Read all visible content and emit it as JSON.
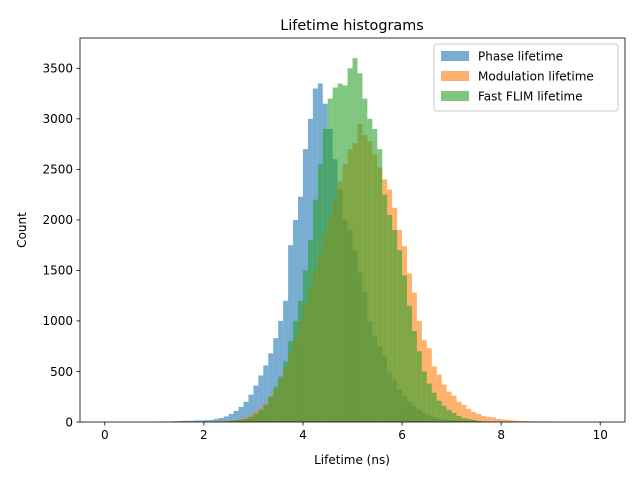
{
  "chart_data": {
    "type": "bar",
    "title": "Lifetime histograms",
    "xlabel": "Lifetime (ns)",
    "ylabel": "Count",
    "xlim": [
      -0.5,
      10.5
    ],
    "ylim": [
      0,
      3800
    ],
    "xticks": [
      0,
      2,
      4,
      6,
      8,
      10
    ],
    "yticks": [
      0,
      500,
      1000,
      1500,
      2000,
      2500,
      3000,
      3500
    ],
    "grid": false,
    "legend_position": "top-right",
    "bin_width": 0.1,
    "series": [
      {
        "name": "Phase lifetime",
        "color": "#1f77b4",
        "x": [
          1.1,
          1.3,
          1.4,
          1.5,
          1.6,
          1.7,
          1.8,
          1.9,
          2.0,
          2.1,
          2.2,
          2.3,
          2.4,
          2.5,
          2.6,
          2.7,
          2.8,
          2.9,
          3.0,
          3.1,
          3.2,
          3.3,
          3.4,
          3.5,
          3.6,
          3.7,
          3.8,
          3.9,
          4.0,
          4.1,
          4.2,
          4.3,
          4.4,
          4.5,
          4.6,
          4.7,
          4.8,
          4.9,
          5.0,
          5.1,
          5.2,
          5.3,
          5.4,
          5.5,
          5.6,
          5.7,
          5.8,
          5.9,
          6.0,
          6.1,
          6.2,
          6.3,
          6.4,
          6.5,
          6.6,
          6.7,
          6.8,
          6.9,
          7.0,
          7.1,
          7.2,
          7.3,
          7.4,
          7.5,
          7.6
        ],
        "values": [
          5,
          5,
          8,
          10,
          12,
          12,
          15,
          15,
          18,
          20,
          30,
          40,
          55,
          80,
          110,
          150,
          200,
          270,
          360,
          460,
          560,
          680,
          830,
          1000,
          1200,
          1750,
          2000,
          2230,
          2700,
          3000,
          3300,
          3350,
          3150,
          2900,
          2600,
          2300,
          2000,
          1900,
          1700,
          1480,
          1290,
          1000,
          850,
          750,
          650,
          490,
          420,
          320,
          260,
          200,
          160,
          120,
          90,
          70,
          50,
          35,
          25,
          20,
          15,
          12,
          10,
          8,
          6,
          5,
          4
        ]
      },
      {
        "name": "Modulation lifetime",
        "color": "#ff7f0e",
        "x": [
          2.2,
          2.3,
          2.4,
          2.5,
          2.6,
          2.7,
          2.8,
          2.9,
          3.0,
          3.1,
          3.2,
          3.3,
          3.4,
          3.5,
          3.6,
          3.7,
          3.8,
          3.9,
          4.0,
          4.1,
          4.2,
          4.3,
          4.4,
          4.5,
          4.6,
          4.7,
          4.8,
          4.9,
          5.0,
          5.1,
          5.2,
          5.3,
          5.4,
          5.5,
          5.6,
          5.7,
          5.8,
          5.9,
          6.0,
          6.1,
          6.2,
          6.3,
          6.4,
          6.5,
          6.6,
          6.7,
          6.8,
          6.9,
          7.0,
          7.1,
          7.2,
          7.3,
          7.4,
          7.5,
          7.6,
          7.7,
          7.8,
          7.9,
          8.0,
          8.1,
          8.2,
          8.3,
          8.4,
          8.5,
          8.6,
          8.7,
          8.8,
          8.9,
          9.0,
          9.1
        ],
        "values": [
          5,
          8,
          10,
          15,
          20,
          30,
          45,
          70,
          100,
          140,
          190,
          260,
          330,
          430,
          540,
          680,
          830,
          1000,
          1170,
          1340,
          1500,
          1680,
          1860,
          2040,
          2200,
          2380,
          2550,
          2700,
          2760,
          2950,
          2840,
          2780,
          2650,
          2520,
          2400,
          2300,
          2120,
          1900,
          1740,
          1470,
          1280,
          1000,
          810,
          730,
          550,
          470,
          370,
          300,
          260,
          200,
          170,
          130,
          100,
          80,
          60,
          50,
          45,
          30,
          25,
          20,
          15,
          12,
          10,
          8,
          6,
          5,
          4,
          3,
          2,
          2
        ]
      },
      {
        "name": "Fast FLIM lifetime",
        "color": "#2ca02c",
        "x": [
          2.4,
          2.5,
          2.6,
          2.7,
          2.8,
          2.9,
          3.0,
          3.1,
          3.2,
          3.3,
          3.4,
          3.5,
          3.6,
          3.7,
          3.8,
          3.9,
          4.0,
          4.1,
          4.2,
          4.3,
          4.4,
          4.5,
          4.6,
          4.7,
          4.8,
          4.9,
          5.0,
          5.1,
          5.2,
          5.3,
          5.4,
          5.5,
          5.6,
          5.7,
          5.8,
          5.9,
          6.0,
          6.1,
          6.2,
          6.3,
          6.4,
          6.5,
          6.6,
          6.7,
          6.8,
          6.9,
          7.0,
          7.1,
          7.2,
          7.3,
          7.4,
          7.5,
          7.6
        ],
        "values": [
          5,
          10,
          15,
          20,
          30,
          50,
          80,
          120,
          170,
          250,
          350,
          450,
          600,
          800,
          1000,
          1200,
          1500,
          1800,
          2200,
          2550,
          2900,
          3200,
          3310,
          3350,
          3330,
          3500,
          3600,
          3450,
          3200,
          3000,
          2900,
          2700,
          2250,
          2050,
          1900,
          1700,
          1450,
          1150,
          900,
          700,
          500,
          380,
          290,
          210,
          160,
          120,
          90,
          60,
          40,
          30,
          20,
          10,
          5
        ]
      }
    ]
  }
}
